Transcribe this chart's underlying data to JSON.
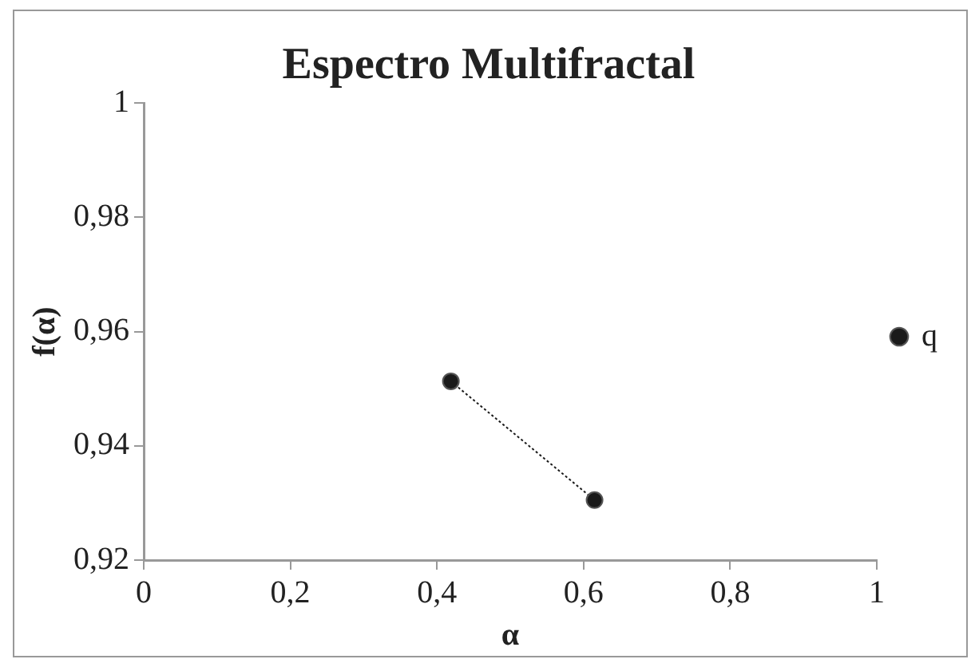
{
  "chart_data": {
    "type": "line",
    "title": "Espectro Multifractal",
    "xlabel": "α",
    "ylabel": "f(α)",
    "x": [
      0.419,
      0.615
    ],
    "series": [
      {
        "name": "q",
        "color": "#1a1a1a",
        "values": [
          0.9513,
          0.9305
        ]
      }
    ],
    "xlim": [
      0,
      1
    ],
    "xticks": [
      0,
      {
        "value": 0.2,
        "label": "0,2"
      },
      {
        "value": 0.4,
        "label": "0,4"
      },
      {
        "value": 0.6,
        "label": "0,6"
      },
      {
        "value": 0.8,
        "label": "0,8"
      },
      1
    ],
    "ylim": [
      0.92,
      1
    ],
    "yticks": [
      {
        "value": 0.92,
        "label": "0,92"
      },
      {
        "value": 0.94,
        "label": "0,94"
      },
      {
        "value": 0.96,
        "label": "0,96"
      },
      {
        "value": 0.98,
        "label": "0,98"
      },
      1
    ],
    "grid": false,
    "legend": "right",
    "marker": "circle",
    "line_style": "dotted"
  }
}
